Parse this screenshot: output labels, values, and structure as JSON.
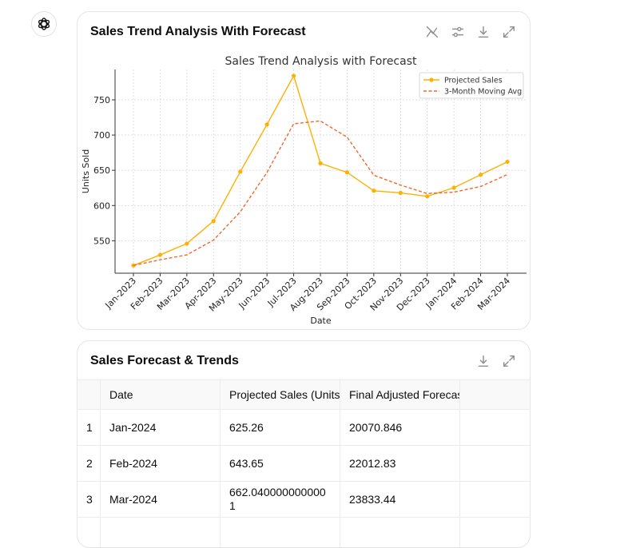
{
  "chart_card": {
    "title": "Sales Trend Analysis With Forecast",
    "tools": [
      "hide-chart-icon",
      "settings-sliders-icon",
      "download-icon",
      "expand-icon"
    ]
  },
  "chart_data": {
    "type": "line",
    "title": "Sales Trend Analysis with Forecast",
    "xlabel": "Date",
    "ylabel": "Units Sold",
    "categories": [
      "Jan-2023",
      "Feb-2023",
      "Mar-2023",
      "Apr-2023",
      "May-2023",
      "Jun-2023",
      "Jul-2023",
      "Aug-2023",
      "Sep-2023",
      "Oct-2023",
      "Nov-2023",
      "Dec-2023",
      "Jan-2024",
      "Feb-2024",
      "Mar-2024"
    ],
    "series": [
      {
        "name": "Projected Sales",
        "style": "solid-markers",
        "color": "#ffb000",
        "values": [
          515,
          530,
          546,
          578,
          648,
          715,
          784,
          660,
          647,
          621,
          618,
          613,
          625.26,
          643.65,
          662.04
        ]
      },
      {
        "name": "3-Month Moving Avg",
        "style": "dashed",
        "color": "#f06a30",
        "values": [
          515,
          523,
          530,
          551,
          591,
          647,
          716,
          720,
          697,
          643,
          629,
          617,
          619,
          627,
          644
        ]
      }
    ],
    "yticks": [
      550,
      600,
      650,
      700,
      750
    ],
    "ylim": [
      504,
      793
    ],
    "grid": true,
    "legend": "top-right"
  },
  "table_card": {
    "title": "Sales Forecast & Trends",
    "tools": [
      "download-icon",
      "expand-icon"
    ],
    "columns": [
      "",
      "Date",
      "Projected Sales (Units)",
      "Final Adjusted Forecast",
      ""
    ],
    "rows": [
      [
        "1",
        "Jan-2024",
        "625.26",
        "20070.846"
      ],
      [
        "2",
        "Feb-2024",
        "643.65",
        "22012.83"
      ],
      [
        "3",
        "Mar-2024",
        "662.0400000000001",
        "23833.44"
      ]
    ]
  }
}
